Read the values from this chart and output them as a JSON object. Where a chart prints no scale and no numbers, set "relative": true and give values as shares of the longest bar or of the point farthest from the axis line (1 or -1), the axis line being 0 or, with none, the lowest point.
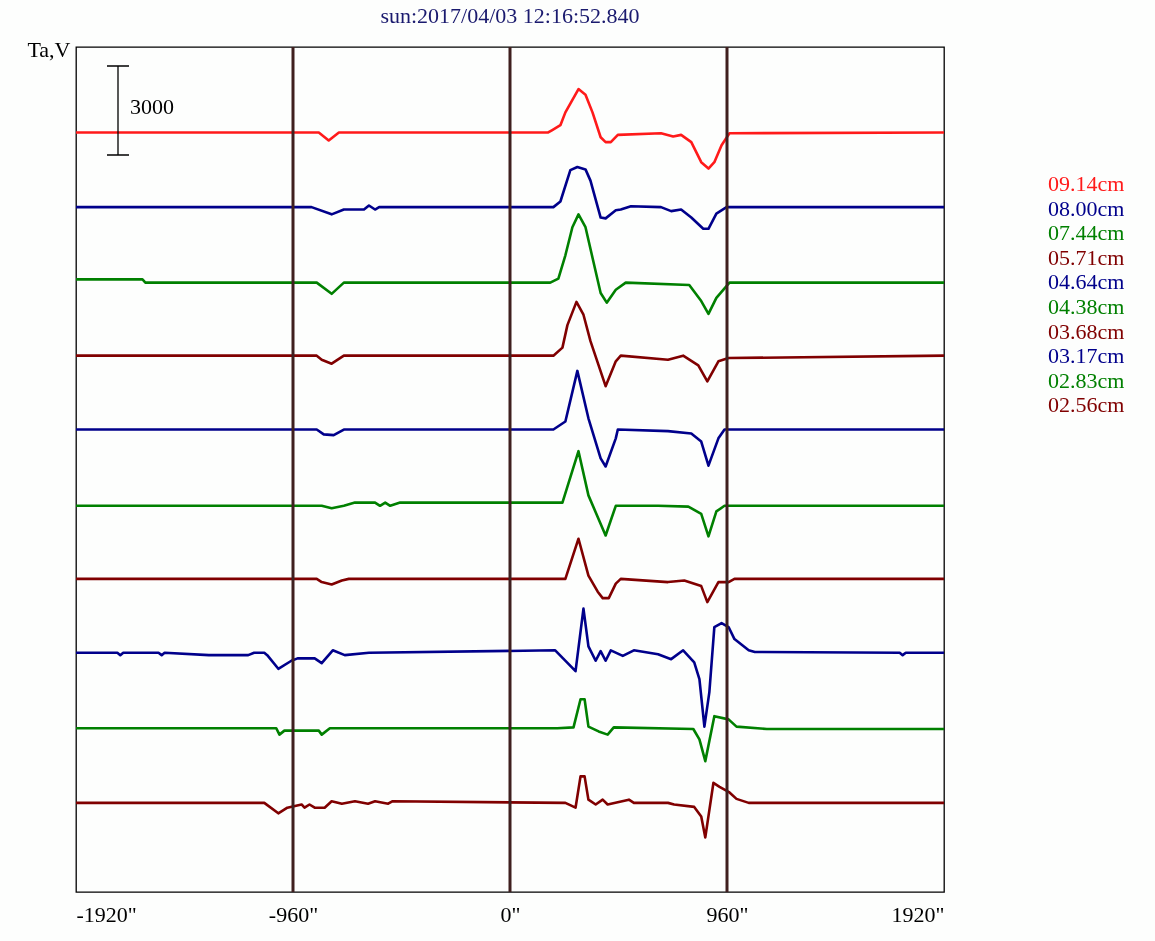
{
  "chart_data": {
    "type": "line",
    "title": "sun:2017/04/03 12:16:52.840",
    "ylabel": "Ta,V",
    "relative": true,
    "legend": "right",
    "annotations": [
      "3000"
    ],
    "xlim": [
      -1920,
      1920
    ],
    "xticks": [
      {
        "value": -1920,
        "label": "-1920\""
      },
      {
        "value": -960,
        "label": "-960\""
      },
      {
        "value": 0,
        "label": "0\""
      },
      {
        "value": 960,
        "label": "960\""
      },
      {
        "value": 1920,
        "label": "1920\""
      }
    ],
    "ref_lines": [
      {
        "axis": "x",
        "value": -960,
        "color": "#3f1f1f"
      },
      {
        "axis": "x",
        "value": 0,
        "color": "#3f1f1f"
      },
      {
        "axis": "x",
        "value": 960,
        "color": "#3f1f1f"
      }
    ],
    "series": [
      {
        "name": "09.14cm",
        "color": "#ff1a1a",
        "x": [
          -1920,
          -846,
          -802,
          -757,
          169,
          187,
          223,
          245,
          303,
          334,
          365,
          401,
          423,
          446,
          477,
          668,
          722,
          757,
          802,
          846,
          878,
          904,
          936,
          971,
          1920
        ],
        "values": [
          0.946,
          0.946,
          0.936,
          0.946,
          0.946,
          0.949,
          0.955,
          0.971,
          1.0,
          0.993,
          0.971,
          0.94,
          0.934,
          0.934,
          0.943,
          0.945,
          0.941,
          0.943,
          0.934,
          0.909,
          0.901,
          0.909,
          0.93,
          0.945,
          0.946
        ]
      },
      {
        "name": "08.00cm",
        "color": "#00008b",
        "x": [
          -1920,
          -878,
          -789,
          -735,
          -646,
          -624,
          -597,
          -579,
          192,
          223,
          267,
          298,
          334,
          356,
          401,
          423,
          468,
          490,
          535,
          668,
          713,
          757,
          802,
          855,
          878,
          913,
          958,
          1920
        ],
        "values": [
          0.853,
          0.853,
          0.844,
          0.85,
          0.85,
          0.855,
          0.85,
          0.853,
          0.853,
          0.86,
          0.899,
          0.903,
          0.9,
          0.886,
          0.84,
          0.839,
          0.849,
          0.85,
          0.854,
          0.853,
          0.848,
          0.85,
          0.84,
          0.826,
          0.826,
          0.845,
          0.853,
          0.853
        ]
      },
      {
        "name": "07.44cm",
        "color": "#008000",
        "x": [
          -1920,
          -1626,
          -1613,
          -855,
          -789,
          -735,
          178,
          214,
          245,
          276,
          303,
          334,
          365,
          401,
          428,
          468,
          512,
          793,
          846,
          878,
          913,
          971,
          1920
        ],
        "values": [
          0.763,
          0.763,
          0.759,
          0.759,
          0.745,
          0.759,
          0.759,
          0.764,
          0.793,
          0.828,
          0.844,
          0.828,
          0.79,
          0.746,
          0.734,
          0.75,
          0.759,
          0.756,
          0.736,
          0.72,
          0.74,
          0.759,
          0.759
        ]
      },
      {
        "name": "05.71cm",
        "color": "#800000",
        "x": [
          -1920,
          -855,
          -833,
          -789,
          -735,
          192,
          232,
          254,
          294,
          325,
          356,
          423,
          468,
          490,
          699,
          766,
          833,
          873,
          922,
          967,
          1920
        ],
        "values": [
          0.668,
          0.668,
          0.663,
          0.658,
          0.668,
          0.668,
          0.678,
          0.706,
          0.735,
          0.719,
          0.686,
          0.63,
          0.661,
          0.668,
          0.663,
          0.668,
          0.656,
          0.636,
          0.661,
          0.665,
          0.668
        ]
      },
      {
        "name": "04.64cm",
        "color": "#00008b",
        "x": [
          -1920,
          -855,
          -824,
          -780,
          -735,
          192,
          245,
          298,
          347,
          401,
          423,
          468,
          477,
          699,
          802,
          846,
          878,
          922,
          949,
          1920
        ],
        "values": [
          0.576,
          0.576,
          0.57,
          0.569,
          0.576,
          0.576,
          0.586,
          0.649,
          0.59,
          0.54,
          0.53,
          0.565,
          0.576,
          0.574,
          0.571,
          0.561,
          0.531,
          0.565,
          0.576,
          0.576
        ]
      },
      {
        "name": "04.38cm",
        "color": "#008000",
        "x": [
          -1920,
          -833,
          -789,
          -735,
          -686,
          -597,
          -575,
          -552,
          -530,
          -486,
          232,
          303,
          347,
          423,
          468,
          655,
          789,
          846,
          878,
          913,
          949,
          1920
        ],
        "values": [
          0.481,
          0.481,
          0.478,
          0.481,
          0.485,
          0.485,
          0.481,
          0.485,
          0.481,
          0.485,
          0.485,
          0.549,
          0.494,
          0.444,
          0.481,
          0.481,
          0.48,
          0.471,
          0.443,
          0.474,
          0.481,
          0.481
        ]
      },
      {
        "name": "03.68cm",
        "color": "#800000",
        "x": [
          -1920,
          -855,
          -833,
          -789,
          -744,
          -713,
          245,
          303,
          347,
          388,
          410,
          437,
          468,
          490,
          699,
          771,
          846,
          873,
          922,
          967,
          993,
          1920
        ],
        "values": [
          0.39,
          0.39,
          0.386,
          0.383,
          0.388,
          0.39,
          0.39,
          0.44,
          0.394,
          0.374,
          0.366,
          0.366,
          0.384,
          0.39,
          0.386,
          0.388,
          0.381,
          0.361,
          0.386,
          0.386,
          0.39,
          0.39
        ]
      },
      {
        "name": "03.17cm",
        "color": "#00008b",
        "x": [
          -1920,
          -1737,
          -1724,
          -1711,
          -1555,
          -1541,
          -1528,
          -1332,
          -1158,
          -1132,
          -1087,
          -1074,
          -1025,
          -967,
          -940,
          -864,
          -833,
          -784,
          -731,
          -624,
          200,
          290,
          325,
          347,
          379,
          401,
          423,
          446,
          499,
          548,
          655,
          713,
          766,
          815,
          838,
          860,
          882,
          904,
          936,
          967,
          993,
          1056,
          1083,
          1724,
          1737,
          1751,
          1920
        ],
        "values": [
          0.298,
          0.298,
          0.295,
          0.298,
          0.298,
          0.295,
          0.298,
          0.295,
          0.295,
          0.298,
          0.298,
          0.295,
          0.278,
          0.288,
          0.291,
          0.291,
          0.285,
          0.301,
          0.295,
          0.298,
          0.301,
          0.275,
          0.353,
          0.306,
          0.288,
          0.3,
          0.288,
          0.301,
          0.294,
          0.301,
          0.296,
          0.29,
          0.301,
          0.286,
          0.265,
          0.206,
          0.249,
          0.33,
          0.335,
          0.33,
          0.315,
          0.301,
          0.299,
          0.298,
          0.295,
          0.298,
          0.298
        ]
      },
      {
        "name": "02.83cm",
        "color": "#008000",
        "x": [
          -1920,
          -1034,
          -1020,
          -998,
          -846,
          -833,
          -797,
          209,
          281,
          312,
          330,
          347,
          392,
          432,
          459,
          811,
          838,
          864,
          904,
          967,
          1002,
          1136,
          1920
        ],
        "values": [
          0.204,
          0.204,
          0.196,
          0.201,
          0.201,
          0.196,
          0.204,
          0.204,
          0.205,
          0.24,
          0.24,
          0.206,
          0.2,
          0.196,
          0.205,
          0.203,
          0.19,
          0.163,
          0.219,
          0.215,
          0.206,
          0.203,
          0.203
        ]
      },
      {
        "name": "02.56cm",
        "color": "#800000",
        "x": [
          -1920,
          -1087,
          -1025,
          -985,
          -922,
          -909,
          -887,
          -864,
          -820,
          -789,
          -744,
          -686,
          -628,
          -597,
          -539,
          -521,
          245,
          290,
          312,
          330,
          347,
          379,
          410,
          432,
          526,
          548,
          699,
          726,
          815,
          846,
          864,
          900,
          927,
          971,
          1002,
          1056,
          1920
        ],
        "values": [
          0.111,
          0.111,
          0.098,
          0.105,
          0.109,
          0.105,
          0.109,
          0.105,
          0.105,
          0.113,
          0.11,
          0.113,
          0.11,
          0.113,
          0.11,
          0.113,
          0.111,
          0.105,
          0.144,
          0.144,
          0.115,
          0.109,
          0.115,
          0.109,
          0.115,
          0.111,
          0.111,
          0.109,
          0.106,
          0.094,
          0.068,
          0.136,
          0.131,
          0.124,
          0.116,
          0.111,
          0.111
        ]
      }
    ]
  }
}
